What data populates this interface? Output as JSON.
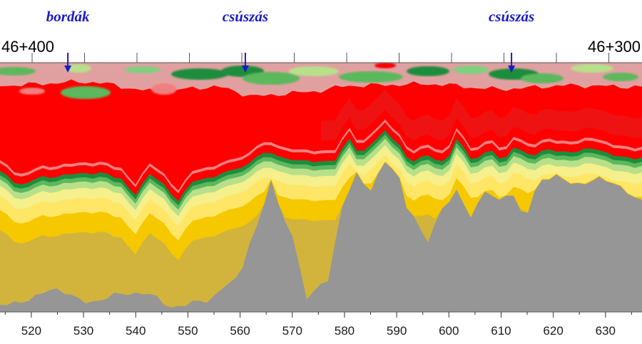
{
  "chart_data": {
    "type": "heatmap",
    "title": "",
    "xlabel": "",
    "ylabel": "",
    "xlim": [
      514,
      637
    ],
    "x_ticks": [
      520,
      530,
      540,
      550,
      560,
      570,
      580,
      590,
      600,
      610,
      620,
      630
    ],
    "stations": {
      "left": "46+400",
      "right": "46+300"
    },
    "annotations": [
      {
        "text": "bordák",
        "x": 527
      },
      {
        "text": "csúszás",
        "x": 561
      },
      {
        "text": "csúszás",
        "x": 612
      }
    ],
    "color_levels": [
      "#e0a0a0",
      "#ff0000",
      "#f08080",
      "#7fd07f",
      "#1e8c3c",
      "#5cb85c",
      "#b8e08a",
      "#f5f08c",
      "#ffe666",
      "#f5c800",
      "#d2b43c",
      "#969696"
    ],
    "colors": {
      "arrow": "#1a1ac8",
      "annotation": "#1a1ac8"
    }
  }
}
